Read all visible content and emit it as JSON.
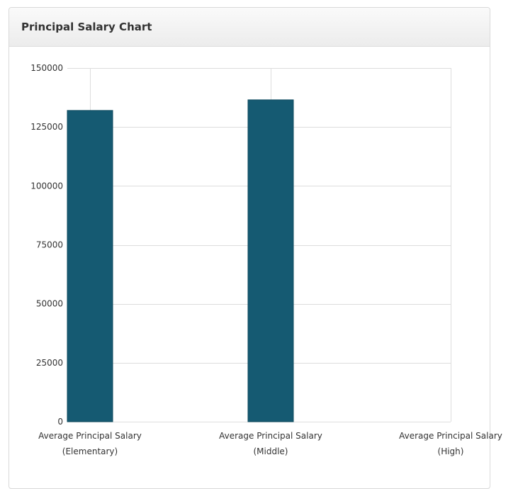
{
  "panel": {
    "title": "Principal Salary Chart"
  },
  "colors": {
    "bar": "#155a72",
    "bar_edge": "#0f4a5e",
    "grid": "#dddddd"
  },
  "chart_data": {
    "type": "bar",
    "categories": [
      [
        "Average Principal Salary",
        "(Elementary)"
      ],
      [
        "Average Principal Salary",
        "(Middle)"
      ],
      [
        "Average Principal Salary",
        "(High)"
      ]
    ],
    "values": [
      132000,
      136500,
      0
    ],
    "y_ticks": [
      "0",
      "25000",
      "50000",
      "75000",
      "100000",
      "125000",
      "150000"
    ],
    "ylim": [
      0,
      150000
    ],
    "grid": true,
    "legend": "none"
  }
}
